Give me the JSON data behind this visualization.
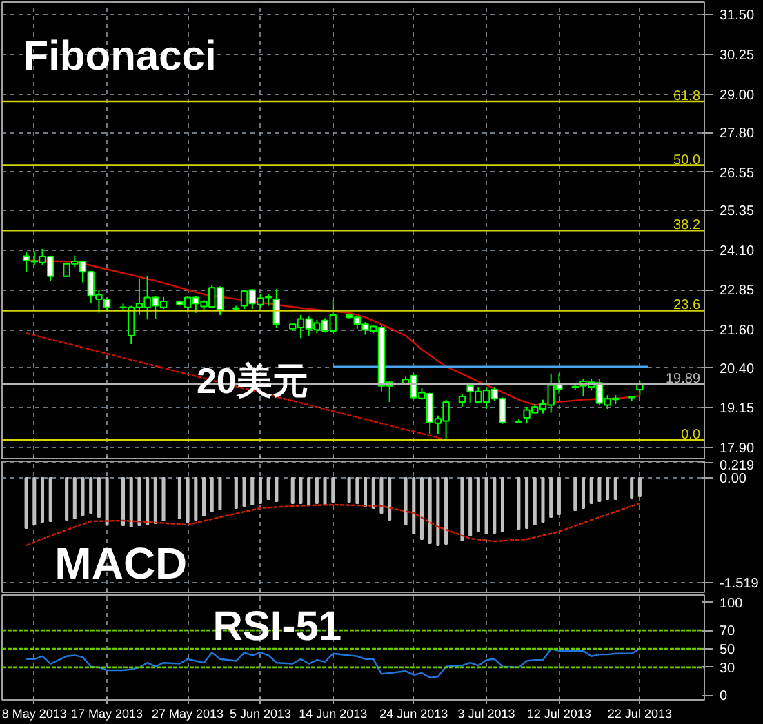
{
  "chart_data": [
    {
      "type": "candlestick",
      "title": "Fibonacci",
      "color": "#00ff00",
      "x": [
        "2013-05-07",
        "2013-05-08",
        "2013-05-09",
        "2013-05-10",
        "2013-05-12",
        "2013-05-13",
        "2013-05-14",
        "2013-05-15",
        "2013-05-16",
        "2013-05-17",
        "2013-05-19",
        "2013-05-20",
        "2013-05-21",
        "2013-05-22",
        "2013-05-23",
        "2013-05-24",
        "2013-05-26",
        "2013-05-27",
        "2013-05-28",
        "2013-05-29",
        "2013-05-30",
        "2013-05-31",
        "2013-06-02",
        "2013-06-03",
        "2013-06-04",
        "2013-06-05",
        "2013-06-06",
        "2013-06-07",
        "2013-06-09",
        "2013-06-10",
        "2013-06-11",
        "2013-06-12",
        "2013-06-13",
        "2013-06-14",
        "2013-06-16",
        "2013-06-17",
        "2013-06-18",
        "2013-06-19",
        "2013-06-20",
        "2013-06-21",
        "2013-06-23",
        "2013-06-24",
        "2013-06-25",
        "2013-06-26",
        "2013-06-27",
        "2013-06-28",
        "2013-06-30",
        "2013-07-01",
        "2013-07-02",
        "2013-07-03",
        "2013-07-04",
        "2013-07-05",
        "2013-07-07",
        "2013-07-08",
        "2013-07-09",
        "2013-07-10",
        "2013-07-11",
        "2013-07-12",
        "2013-07-14",
        "2013-07-15",
        "2013-07-16",
        "2013-07-17",
        "2013-07-18",
        "2013-07-19",
        "2013-07-21",
        "2013-07-22"
      ],
      "ohlc": [
        [
          23.91,
          24.03,
          23.42,
          23.77
        ],
        [
          23.76,
          24.07,
          23.64,
          23.74
        ],
        [
          23.71,
          24.14,
          23.64,
          23.9
        ],
        [
          23.9,
          23.93,
          23.14,
          23.28
        ],
        [
          23.28,
          23.71,
          23.25,
          23.67
        ],
        [
          23.67,
          23.93,
          23.57,
          23.75
        ],
        [
          23.75,
          23.78,
          23.09,
          23.42
        ],
        [
          23.42,
          23.45,
          22.45,
          22.66
        ],
        [
          22.56,
          22.85,
          22.13,
          22.7
        ],
        [
          22.56,
          22.59,
          22.16,
          22.3
        ],
        [
          22.31,
          22.42,
          22.23,
          22.3
        ],
        [
          21.41,
          22.35,
          21.15,
          22.3
        ],
        [
          22.3,
          23.21,
          22.06,
          22.42
        ],
        [
          22.3,
          23.28,
          21.92,
          22.61
        ],
        [
          22.61,
          22.66,
          21.94,
          22.35
        ],
        [
          22.3,
          22.63,
          22.25,
          22.49
        ],
        [
          22.48,
          22.52,
          22.35,
          22.39
        ],
        [
          22.3,
          22.66,
          22.13,
          22.61
        ],
        [
          22.61,
          22.66,
          22.13,
          22.42
        ],
        [
          22.33,
          22.53,
          22.17,
          22.48
        ],
        [
          22.32,
          22.99,
          22.28,
          22.92
        ],
        [
          22.92,
          22.96,
          22.06,
          22.23
        ],
        [
          22.28,
          22.35,
          22.2,
          22.26
        ],
        [
          22.35,
          22.85,
          22.25,
          22.81
        ],
        [
          22.85,
          22.88,
          22.25,
          22.42
        ],
        [
          22.39,
          22.71,
          22.28,
          22.59
        ],
        [
          22.63,
          22.73,
          22.35,
          22.61
        ],
        [
          22.56,
          22.88,
          21.67,
          21.77
        ],
        [
          21.63,
          21.82,
          21.56,
          21.77
        ],
        [
          21.67,
          22.06,
          21.34,
          21.94
        ],
        [
          21.94,
          22.02,
          21.41,
          21.63
        ],
        [
          21.6,
          21.91,
          21.49,
          21.81
        ],
        [
          21.89,
          21.96,
          21.51,
          21.56
        ],
        [
          21.56,
          22.53,
          21.51,
          22.06
        ],
        [
          22.06,
          22.09,
          21.96,
          21.99
        ],
        [
          21.99,
          22.02,
          21.63,
          21.77
        ],
        [
          21.77,
          21.84,
          21.44,
          21.6
        ],
        [
          21.56,
          21.74,
          21.49,
          21.7
        ],
        [
          21.67,
          21.73,
          19.66,
          19.83
        ],
        [
          19.83,
          20.0,
          19.33,
          19.95
        ],
        [
          19.9,
          20.12,
          19.86,
          20.04
        ],
        [
          20.15,
          20.19,
          19.43,
          19.47
        ],
        [
          19.44,
          19.76,
          19.4,
          19.62
        ],
        [
          19.59,
          19.62,
          18.32,
          18.68
        ],
        [
          18.66,
          18.9,
          18.32,
          18.8
        ],
        [
          18.73,
          19.4,
          18.14,
          19.33
        ],
        [
          19.33,
          19.57,
          19.18,
          19.5
        ],
        [
          19.83,
          19.9,
          19.28,
          19.66
        ],
        [
          19.33,
          19.8,
          19.28,
          19.66
        ],
        [
          19.33,
          19.8,
          19.11,
          19.69
        ],
        [
          19.72,
          19.8,
          19.37,
          19.43
        ],
        [
          19.43,
          19.47,
          18.64,
          18.68
        ],
        [
          18.72,
          18.78,
          18.68,
          18.7
        ],
        [
          18.83,
          19.18,
          18.65,
          19.08
        ],
        [
          18.99,
          19.26,
          18.94,
          19.17
        ],
        [
          19.11,
          19.4,
          18.97,
          19.26
        ],
        [
          19.23,
          20.22,
          18.99,
          19.86
        ],
        [
          19.87,
          20.22,
          19.57,
          19.73
        ],
        [
          19.81,
          19.86,
          19.72,
          19.8
        ],
        [
          19.83,
          20.05,
          19.5,
          19.98
        ],
        [
          19.8,
          20.05,
          19.69,
          19.95
        ],
        [
          19.93,
          20.05,
          19.23,
          19.29
        ],
        [
          19.23,
          19.54,
          19.11,
          19.43
        ],
        [
          19.41,
          19.54,
          19.26,
          19.44
        ],
        [
          19.47,
          19.5,
          19.36,
          19.48
        ],
        [
          19.72,
          19.98,
          19.54,
          19.89
        ]
      ],
      "series": [
        {
          "type": "line",
          "color": "#cc1100",
          "x": [
            "2013-05-07",
            "2013-05-13",
            "2013-05-17",
            "2013-05-23",
            "2013-05-29",
            "2013-06-04",
            "2013-06-10",
            "2013-06-16",
            "2013-06-18",
            "2013-06-20",
            "2013-06-23",
            "2013-06-25",
            "2013-06-28",
            "2013-07-03",
            "2013-07-07",
            "2013-07-09",
            "2013-07-12",
            "2013-07-15",
            "2013-07-17",
            "2013-07-19",
            "2013-07-22"
          ],
          "values": [
            23.78,
            23.74,
            23.5,
            23.14,
            22.71,
            22.49,
            22.28,
            22.13,
            21.99,
            21.77,
            21.41,
            20.98,
            20.44,
            19.86,
            19.4,
            19.23,
            19.33,
            19.4,
            19.43,
            19.43,
            19.52
          ]
        },
        {
          "type": "line",
          "color": "#cc1100",
          "line_style": "dashed",
          "x": [
            "2013-05-07",
            "2013-06-28"
          ],
          "values": [
            21.49,
            18.14
          ]
        },
        {
          "type": "line",
          "color": "#4aa3f0",
          "x": [
            "2013-06-14",
            "2013-07-23"
          ],
          "values": [
            20.44,
            20.44
          ]
        }
      ],
      "ref_lines": [
        {
          "axis": "y",
          "value": 28.78,
          "color": "#d4d400"
        },
        {
          "axis": "y",
          "value": 26.77,
          "color": "#d4d400"
        },
        {
          "axis": "y",
          "value": 24.72,
          "color": "#d4d400"
        },
        {
          "axis": "y",
          "value": 22.2,
          "color": "#d4d400"
        },
        {
          "axis": "y",
          "value": 18.14,
          "color": "#d4d400"
        },
        {
          "axis": "y",
          "value": 19.89,
          "label": "19.89",
          "color": "#b4b4b4"
        }
      ],
      "annotations": [
        {
          "text": "20美元",
          "x": "2013-06-14",
          "y": 20.44
        },
        {
          "text": "61.8",
          "x": "2013-07-30",
          "y": 28.78
        },
        {
          "text": "50.0",
          "x": "2013-07-30",
          "y": 26.77
        },
        {
          "text": "38.2",
          "x": "2013-07-30",
          "y": 24.72
        },
        {
          "text": "23.6",
          "x": "2013-07-30",
          "y": 22.2
        },
        {
          "text": "0.0",
          "x": "2013-07-30",
          "y": 18.14
        }
      ],
      "xlim": [
        "2013-05-04",
        "2013-07-30"
      ],
      "ylim": [
        17.55,
        31.9
      ],
      "xticks": [
        {
          "value": "2013-05-08",
          "label": null
        },
        {
          "value": "2013-05-17",
          "label": null
        },
        {
          "value": "2013-05-27",
          "label": null
        },
        {
          "value": "2013-06-05",
          "label": null
        },
        {
          "value": "2013-06-14",
          "label": null
        },
        {
          "value": "2013-06-24",
          "label": null
        },
        {
          "value": "2013-07-03",
          "label": null
        },
        {
          "value": "2013-07-12",
          "label": null
        },
        {
          "value": "2013-07-22",
          "label": null
        }
      ],
      "yticks": [
        {
          "value": 31.5,
          "label": "31.50"
        },
        {
          "value": 30.25,
          "label": "30.25"
        },
        {
          "value": 29.0,
          "label": "29.00"
        },
        {
          "value": 27.8,
          "label": "27.80"
        },
        {
          "value": 26.55,
          "label": "26.55"
        },
        {
          "value": 25.35,
          "label": "25.35"
        },
        {
          "value": 24.1,
          "label": "24.10"
        },
        {
          "value": 22.85,
          "label": "22.85"
        },
        {
          "value": 21.6,
          "label": "21.60"
        },
        {
          "value": 20.4,
          "label": "20.40"
        },
        {
          "value": 19.15,
          "label": "19.15"
        },
        {
          "value": 17.9,
          "label": "17.90"
        }
      ],
      "grid": true,
      "tick_labels": "y"
    },
    {
      "type": "bar",
      "title": "MACD",
      "x": [
        "2013-05-07",
        "2013-05-08",
        "2013-05-09",
        "2013-05-10",
        "2013-05-12",
        "2013-05-13",
        "2013-05-14",
        "2013-05-15",
        "2013-05-16",
        "2013-05-17",
        "2013-05-19",
        "2013-05-20",
        "2013-05-21",
        "2013-05-22",
        "2013-05-23",
        "2013-05-24",
        "2013-05-26",
        "2013-05-27",
        "2013-05-28",
        "2013-05-29",
        "2013-05-30",
        "2013-05-31",
        "2013-06-02",
        "2013-06-03",
        "2013-06-04",
        "2013-06-05",
        "2013-06-06",
        "2013-06-07",
        "2013-06-09",
        "2013-06-10",
        "2013-06-11",
        "2013-06-12",
        "2013-06-13",
        "2013-06-14",
        "2013-06-16",
        "2013-06-17",
        "2013-06-18",
        "2013-06-19",
        "2013-06-20",
        "2013-06-21",
        "2013-06-23",
        "2013-06-24",
        "2013-06-25",
        "2013-06-26",
        "2013-06-27",
        "2013-06-28",
        "2013-06-30",
        "2013-07-01",
        "2013-07-02",
        "2013-07-03",
        "2013-07-04",
        "2013-07-05",
        "2013-07-07",
        "2013-07-08",
        "2013-07-09",
        "2013-07-10",
        "2013-07-11",
        "2013-07-12",
        "2013-07-14",
        "2013-07-15",
        "2013-07-16",
        "2013-07-17",
        "2013-07-18",
        "2013-07-19",
        "2013-07-21",
        "2013-07-22"
      ],
      "series": [
        {
          "type": "bar",
          "color": "#c0c0c0",
          "values": [
            -0.73,
            -0.68,
            -0.64,
            -0.63,
            -0.61,
            -0.59,
            -0.54,
            -0.51,
            -0.57,
            -0.68,
            -0.69,
            -0.71,
            -0.69,
            -0.68,
            -0.66,
            -0.62,
            -0.59,
            -0.64,
            -0.61,
            -0.55,
            -0.49,
            -0.46,
            -0.44,
            -0.41,
            -0.39,
            -0.37,
            -0.31,
            -0.34,
            -0.37,
            -0.37,
            -0.39,
            -0.37,
            -0.39,
            -0.35,
            -0.35,
            -0.37,
            -0.41,
            -0.44,
            -0.51,
            -0.61,
            -0.68,
            -0.81,
            -0.89,
            -0.95,
            -0.98,
            -0.96,
            -0.91,
            -0.84,
            -0.78,
            -0.81,
            -0.8,
            -0.78,
            -0.74,
            -0.73,
            -0.68,
            -0.64,
            -0.57,
            -0.53,
            -0.47,
            -0.44,
            -0.37,
            -0.34,
            -0.31,
            -0.31,
            -0.29,
            -0.27
          ]
        },
        {
          "type": "line",
          "color": "#cc2200",
          "line_style": "dashed",
          "x": [
            "2013-05-07",
            "2013-05-10",
            "2013-05-15",
            "2013-05-19",
            "2013-05-22",
            "2013-05-27",
            "2013-05-31",
            "2013-06-05",
            "2013-06-09",
            "2013-06-14",
            "2013-06-20",
            "2013-06-24",
            "2013-06-27",
            "2013-07-01",
            "2013-07-04",
            "2013-07-08",
            "2013-07-12",
            "2013-07-17",
            "2013-07-22"
          ],
          "values": [
            -0.98,
            -0.84,
            -0.63,
            -0.62,
            -0.64,
            -0.68,
            -0.57,
            -0.44,
            -0.41,
            -0.39,
            -0.41,
            -0.51,
            -0.71,
            -0.88,
            -0.92,
            -0.89,
            -0.78,
            -0.57,
            -0.37
          ]
        }
      ],
      "xlim": [
        "2013-05-04",
        "2013-07-30"
      ],
      "ylim": [
        -1.66,
        0.24
      ],
      "xticks": [
        {
          "value": "2013-05-08",
          "label": null
        },
        {
          "value": "2013-05-17",
          "label": null
        },
        {
          "value": "2013-05-27",
          "label": null
        },
        {
          "value": "2013-06-05",
          "label": null
        },
        {
          "value": "2013-06-14",
          "label": null
        },
        {
          "value": "2013-06-24",
          "label": null
        },
        {
          "value": "2013-07-03",
          "label": null
        },
        {
          "value": "2013-07-12",
          "label": null
        },
        {
          "value": "2013-07-22",
          "label": null
        }
      ],
      "yticks": [
        0.219,
        {
          "value": 0,
          "label": "0.00"
        },
        -1.519
      ],
      "grid": true,
      "tick_labels": "y"
    },
    {
      "type": "line",
      "title": "RSI-51",
      "color": "#1e78dc",
      "x": [
        "2013-05-07",
        "2013-05-08",
        "2013-05-09",
        "2013-05-10",
        "2013-05-12",
        "2013-05-13",
        "2013-05-14",
        "2013-05-15",
        "2013-05-16",
        "2013-05-17",
        "2013-05-19",
        "2013-05-20",
        "2013-05-21",
        "2013-05-22",
        "2013-05-23",
        "2013-05-24",
        "2013-05-26",
        "2013-05-27",
        "2013-05-28",
        "2013-05-29",
        "2013-05-30",
        "2013-05-31",
        "2013-06-02",
        "2013-06-03",
        "2013-06-04",
        "2013-06-05",
        "2013-06-06",
        "2013-06-07",
        "2013-06-09",
        "2013-06-10",
        "2013-06-11",
        "2013-06-12",
        "2013-06-13",
        "2013-06-14",
        "2013-06-16",
        "2013-06-17",
        "2013-06-18",
        "2013-06-19",
        "2013-06-20",
        "2013-06-21",
        "2013-06-23",
        "2013-06-24",
        "2013-06-25",
        "2013-06-26",
        "2013-06-27",
        "2013-06-28",
        "2013-06-30",
        "2013-07-01",
        "2013-07-02",
        "2013-07-03",
        "2013-07-04",
        "2013-07-05",
        "2013-07-07",
        "2013-07-08",
        "2013-07-09",
        "2013-07-10",
        "2013-07-11",
        "2013-07-12",
        "2013-07-14",
        "2013-07-15",
        "2013-07-16",
        "2013-07-17",
        "2013-07-18",
        "2013-07-19",
        "2013-07-21",
        "2013-07-22"
      ],
      "values": [
        39,
        39,
        42,
        34,
        42,
        43,
        41,
        31,
        30,
        27,
        27,
        28,
        30,
        35,
        31,
        35,
        34,
        39,
        37,
        35,
        46,
        39,
        37,
        46,
        43,
        46,
        43,
        35,
        34,
        39,
        34,
        38,
        36,
        45,
        43,
        42,
        39,
        39,
        23,
        24,
        26,
        22,
        24,
        19,
        20,
        31,
        32,
        35,
        32,
        38,
        39,
        31,
        30,
        37,
        38,
        38,
        50,
        48,
        48,
        48,
        42,
        44,
        44,
        45,
        45,
        50
      ],
      "ref_lines": [
        {
          "axis": "y",
          "value": 70,
          "color": "#66cc00",
          "line_style": "dashed"
        },
        {
          "axis": "y",
          "value": 50,
          "color": "#66cc00",
          "line_style": "dashed"
        },
        {
          "axis": "y",
          "value": 30,
          "color": "#66cc00",
          "line_style": "dashed"
        }
      ],
      "xlim": [
        "2013-05-04",
        "2013-07-30"
      ],
      "ylim": [
        -5,
        108
      ],
      "xticks": [
        {
          "value": "2013-05-08",
          "label": "8 May 2013"
        },
        {
          "value": "2013-05-17",
          "label": "17 May 2013"
        },
        {
          "value": "2013-05-27",
          "label": "27 May 2013"
        },
        {
          "value": "2013-06-05",
          "label": "5 Jun 2013"
        },
        {
          "value": "2013-06-14",
          "label": "14 Jun 2013"
        },
        {
          "value": "2013-06-24",
          "label": "24 Jun 2013"
        },
        {
          "value": "2013-07-03",
          "label": "3 Jul 2013"
        },
        {
          "value": "2013-07-12",
          "label": "12 Jul 2013"
        },
        {
          "value": "2013-07-22",
          "label": "22 Jul 2013"
        }
      ],
      "yticks": [
        100,
        70,
        50,
        30,
        0
      ],
      "grid": "x"
    }
  ]
}
